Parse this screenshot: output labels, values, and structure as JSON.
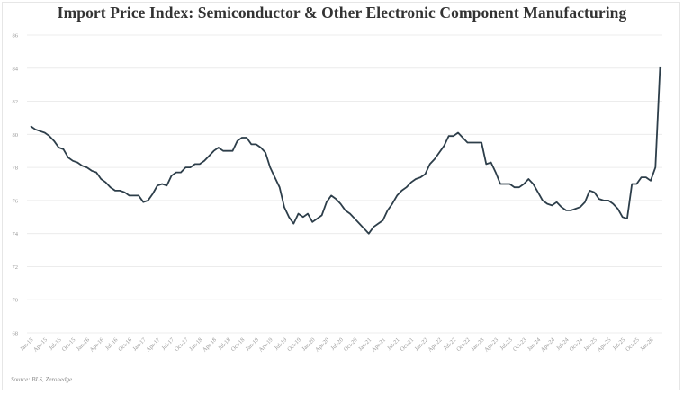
{
  "title": "Import Price Index: Semiconductor & Other Electronic Component Manufacturing",
  "source": "Source: BLS, Zerohedge",
  "colors": {
    "line": "#2d3e4a",
    "grid": "#ececec",
    "tick": "#999999",
    "title": "#333333"
  },
  "chart_data": {
    "type": "line",
    "title": "Import Price Index: Semiconductor & Other Electronic Component Manufacturing",
    "xlabel": "",
    "ylabel": "",
    "ylim": [
      68,
      86
    ],
    "yticks": [
      68,
      70,
      72,
      74,
      76,
      78,
      80,
      82,
      84,
      86
    ],
    "grid": true,
    "legend": "none",
    "xtick_labels": [
      "Jan-15",
      "Apr-15",
      "Jul-15",
      "Oct-15",
      "Jan-16",
      "Apr-16",
      "Jul-16",
      "Oct-16",
      "Jan-17",
      "Apr-17",
      "Jul-17",
      "Oct-17",
      "Jan-18",
      "Apr-18",
      "Jul-18",
      "Oct-18",
      "Jan-19",
      "Apr-19",
      "Jul-19",
      "Oct-19",
      "Jan-20",
      "Apr-20",
      "Jul-20",
      "Oct-20",
      "Jan-21",
      "Apr-21",
      "Jul-21",
      "Oct-21",
      "Jan-22",
      "Apr-22",
      "Jul-22",
      "Oct-22",
      "Jan-23",
      "Apr-23",
      "Jul-23",
      "Oct-23",
      "Jan-24",
      "Apr-24",
      "Jul-24",
      "Oct-24",
      "Jan-25",
      "Apr-25",
      "Jul-25",
      "Oct-25",
      "Jan-26"
    ],
    "series": [
      {
        "name": "Import Price Index",
        "frequency": "monthly",
        "start": "Jan-15",
        "values": [
          80.5,
          80.3,
          80.2,
          80.1,
          79.9,
          79.6,
          79.2,
          79.1,
          78.6,
          78.4,
          78.3,
          78.1,
          78.0,
          77.8,
          77.7,
          77.3,
          77.1,
          76.8,
          76.6,
          76.6,
          76.5,
          76.3,
          76.3,
          76.3,
          75.9,
          76.0,
          76.4,
          76.9,
          77.0,
          76.9,
          77.5,
          77.7,
          77.7,
          78.0,
          78.0,
          78.2,
          78.2,
          78.4,
          78.7,
          79.0,
          79.2,
          79.0,
          79.0,
          79.0,
          79.6,
          79.8,
          79.8,
          79.4,
          79.4,
          79.2,
          78.9,
          78.0,
          77.4,
          76.8,
          75.6,
          75.0,
          74.6,
          75.2,
          75.0,
          75.2,
          74.7,
          74.9,
          75.1,
          75.9,
          76.3,
          76.1,
          75.8,
          75.4,
          75.2,
          74.9,
          74.6,
          74.3,
          74.0,
          74.4,
          74.6,
          74.8,
          75.4,
          75.8,
          76.3,
          76.6,
          76.8,
          77.1,
          77.3,
          77.4,
          77.6,
          78.2,
          78.5,
          78.9,
          79.3,
          79.9,
          79.9,
          80.1,
          79.8,
          79.5,
          79.5,
          79.5,
          79.5,
          78.2,
          78.3,
          77.7,
          77.0,
          77.0,
          77.0,
          76.8,
          76.8,
          77.0,
          77.3,
          77.0,
          76.5,
          76.0,
          75.8,
          75.7,
          75.9,
          75.6,
          75.4,
          75.4,
          75.5,
          75.6,
          75.9,
          76.6,
          76.5,
          76.1,
          76.0,
          76.0,
          75.8,
          75.5,
          75.0,
          74.9,
          77.0,
          77.0,
          77.4,
          77.4,
          77.2,
          78.0,
          84.1
        ]
      }
    ]
  }
}
